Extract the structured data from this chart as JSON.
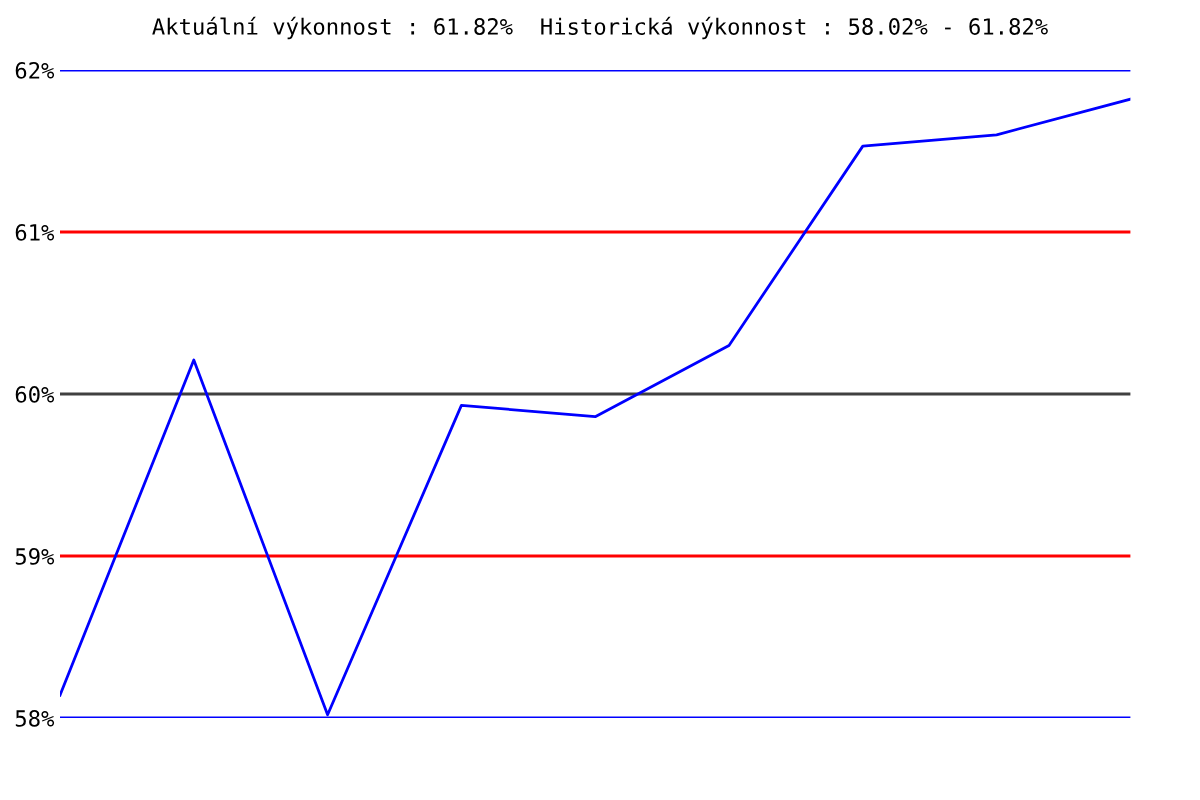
{
  "chart_data": {
    "type": "line",
    "title": "Aktuální výkonnost : 61.82%  Historická výkonnost : 58.02% - 61.82%",
    "categories": [
      null,
      null,
      null,
      null,
      null,
      null,
      null,
      null,
      null
    ],
    "series": [
      {
        "color": "#0000ff",
        "values": [
          58.14,
          60.21,
          58.02,
          59.93,
          59.86,
          60.3,
          61.53,
          61.6,
          61.82
        ]
      }
    ],
    "ylim": [
      58,
      62
    ],
    "yticks": [
      {
        "value": 58,
        "label": "58%"
      },
      {
        "value": 59,
        "label": "59%"
      },
      {
        "value": 60,
        "label": "60%"
      },
      {
        "value": 61,
        "label": "61%"
      },
      {
        "value": 62,
        "label": "62%"
      }
    ],
    "ref_lines": [
      {
        "axis": "y",
        "value": 58,
        "color": "#0000ff"
      },
      {
        "axis": "y",
        "value": 59,
        "color": "#ff0000"
      },
      {
        "axis": "y",
        "value": 60,
        "color": "#404040"
      },
      {
        "axis": "y",
        "value": 61,
        "color": "#ff0000"
      },
      {
        "axis": "y",
        "value": 62,
        "color": "#0000ff"
      }
    ],
    "tick_labels": "y",
    "grid": false,
    "legend": false,
    "marker": "none",
    "line_style": "solid"
  }
}
